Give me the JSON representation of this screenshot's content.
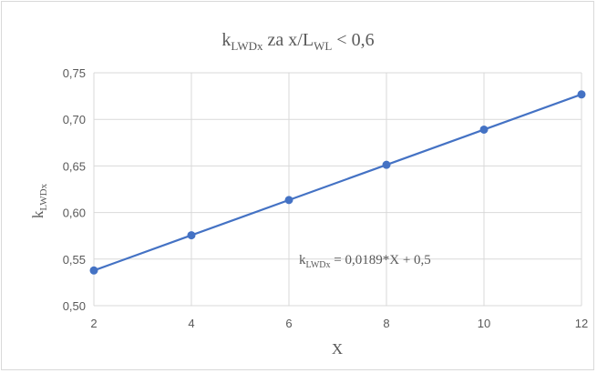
{
  "chart_data": {
    "type": "line",
    "title": {
      "main": "k",
      "sub": "LWDx",
      "rest": " za x/L",
      "sub2": "WL",
      "rest2": " < 0,6"
    },
    "xlabel": "X",
    "ylabel": {
      "main": "k",
      "sub": "LWDx"
    },
    "x": [
      2,
      4,
      6,
      8,
      10,
      12
    ],
    "series": [
      {
        "values": [
          0.5378,
          0.5756,
          0.6134,
          0.6512,
          0.689,
          0.7268
        ]
      }
    ],
    "xlim": [
      2,
      12
    ],
    "ylim": [
      0.5,
      0.75
    ],
    "x_ticks": [
      2,
      4,
      6,
      8,
      10,
      12
    ],
    "x_tick_labels": [
      "2",
      "4",
      "6",
      "8",
      "10",
      "12"
    ],
    "y_ticks": [
      0.5,
      0.55,
      0.6,
      0.65,
      0.7,
      0.75
    ],
    "y_tick_labels": [
      "0,50",
      "0,55",
      "0,60",
      "0,65",
      "0,70",
      "0,75"
    ],
    "grid": true,
    "annotation": {
      "main": "k",
      "sub": "LWDx",
      "rest": " = 0,0189*X + 0,5"
    },
    "colors": {
      "series": "#4472c4",
      "grid": "#d9d9d9",
      "text": "#595959"
    }
  }
}
